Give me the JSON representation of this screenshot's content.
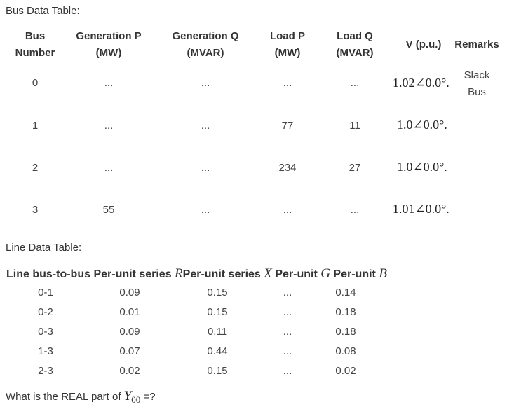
{
  "bus_table": {
    "title": "Bus Data Table:",
    "headers": {
      "bus_line1": "Bus",
      "bus_line2": "Number",
      "gen_p_line1": "Generation P",
      "gen_p_line2": "(MW)",
      "gen_q_line1": "Generation Q",
      "gen_q_line2": "(MVAR)",
      "load_p_line1": "Load P",
      "load_p_line2": "(MW)",
      "load_q_line1": "Load Q",
      "load_q_line2": "(MVAR)",
      "voltage": "V (p.u.)",
      "remarks": "Remarks"
    },
    "rows": [
      {
        "bus": "0",
        "gen_p": "...",
        "gen_q": "...",
        "load_p": "...",
        "load_q": "...",
        "voltage": "1.02∠0.0°.",
        "remark_line1": "Slack",
        "remark_line2": "Bus"
      },
      {
        "bus": "1",
        "gen_p": "...",
        "gen_q": "...",
        "load_p": "77",
        "load_q": "11",
        "voltage": "1.0∠0.0°.",
        "remark_line1": "",
        "remark_line2": ""
      },
      {
        "bus": "2",
        "gen_p": "...",
        "gen_q": "...",
        "load_p": "234",
        "load_q": "27",
        "voltage": "1.0∠0.0°.",
        "remark_line1": "",
        "remark_line2": ""
      },
      {
        "bus": "3",
        "gen_p": "55",
        "gen_q": "...",
        "load_p": "...",
        "load_q": "...",
        "voltage": "1.01∠0.0°.",
        "remark_line1": "",
        "remark_line2": ""
      }
    ]
  },
  "line_table": {
    "title": "Line Data Table:",
    "headers": {
      "line": "Line bus-to-bus",
      "r_prefix": "Per-unit series",
      "r_symbol": "R",
      "x_prefix": "Per-unit series",
      "x_symbol": "X",
      "g_prefix": "Per-unit",
      "g_symbol": "G",
      "b_prefix": "Per-unit",
      "b_symbol": "B"
    },
    "rows": [
      {
        "line": "0-1",
        "r": "0.09",
        "x": "0.15",
        "g": "...",
        "b": "0.14"
      },
      {
        "line": "0-2",
        "r": "0.01",
        "x": "0.15",
        "g": "...",
        "b": "0.18"
      },
      {
        "line": "0-3",
        "r": "0.09",
        "x": "0.11",
        "g": "...",
        "b": "0.18"
      },
      {
        "line": "1-3",
        "r": "0.07",
        "x": "0.44",
        "g": "...",
        "b": "0.08"
      },
      {
        "line": "2-3",
        "r": "0.02",
        "x": "0.15",
        "g": "...",
        "b": "0.02"
      }
    ]
  },
  "question": {
    "prefix": "What is the REAL part of ",
    "symbol": "Y",
    "subscript": "00",
    "suffix": " =?"
  }
}
